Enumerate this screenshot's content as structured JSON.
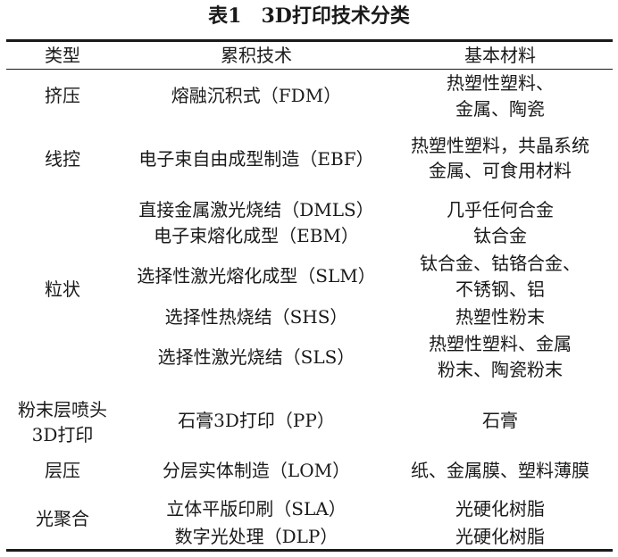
{
  "title": "表1　3D打印技术分类",
  "headers": {
    "type": "类型",
    "technique": "累积技术",
    "material": "基本材料"
  },
  "rows": {
    "extrusion": {
      "type": "挤压",
      "tech": "熔融沉积式（FDM）",
      "mat": [
        "热塑性塑料、",
        "金属、陶瓷"
      ]
    },
    "wire": {
      "type": "线控",
      "tech": "电子束自由成型制造（EBF）",
      "mat": [
        "热塑性塑料，共晶系统",
        "金属、可食用材料"
      ]
    },
    "granular": {
      "type": "粒状",
      "items": [
        {
          "tech": "直接金属激光烧结（DMLS）",
          "mat": [
            "几乎任何合金"
          ]
        },
        {
          "tech": "电子束熔化成型（EBM）",
          "mat": [
            "钛合金"
          ]
        },
        {
          "tech": "选择性激光熔化成型（SLM）",
          "mat": [
            "钛合金、钴铬合金、",
            "不锈钢、铝"
          ]
        },
        {
          "tech": "选择性热烧结（SHS）",
          "mat": [
            "热塑性粉末"
          ]
        },
        {
          "tech": "选择性激光烧结（SLS）",
          "mat": [
            "热塑性塑料、金属",
            "粉末、陶瓷粉末"
          ]
        }
      ]
    },
    "powder": {
      "type": [
        "粉末层喷头",
        "3D打印"
      ],
      "tech": "石膏3D打印（PP）",
      "mat": [
        "石膏"
      ]
    },
    "lamination": {
      "type": "层压",
      "tech": "分层实体制造（LOM）",
      "mat": [
        "纸、金属膜、塑料薄膜"
      ]
    },
    "photo": {
      "type": "光聚合",
      "items": [
        {
          "tech": "立体平版印刷（SLA）",
          "mat": [
            "光硬化树脂"
          ]
        },
        {
          "tech": "数字光处理（DLP）",
          "mat": [
            "光硬化树脂"
          ]
        }
      ]
    }
  }
}
